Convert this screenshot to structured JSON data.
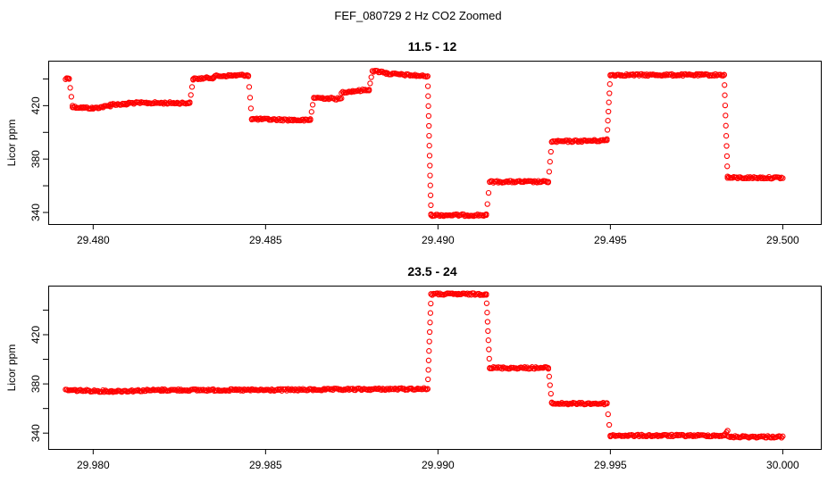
{
  "figure_title": "FEF_080729  2 Hz CO2 Zoomed",
  "colors": {
    "points": "#ff0000",
    "frame": "#000000"
  },
  "chart_data": [
    {
      "type": "scatter",
      "title": "11.5 - 12",
      "xlabel": "",
      "ylabel": "Licor ppm",
      "xlim": [
        29.4788,
        29.501
      ],
      "ylim": [
        334,
        451
      ],
      "xticks": [
        29.48,
        29.485,
        29.49,
        29.495,
        29.5
      ],
      "xtick_labels": [
        "29.480",
        "29.485",
        "29.490",
        "29.495",
        "29.500"
      ],
      "yticks": [
        340,
        360,
        380,
        400,
        420,
        440
      ],
      "ytick_labels": [
        "340",
        "",
        "380",
        "",
        "420",
        ""
      ],
      "grid": false,
      "marker": "open-circle",
      "segments": [
        {
          "x": [
            29.4792,
            29.4793
          ],
          "y": [
            440,
            441
          ],
          "kind": "level"
        },
        {
          "x": [
            29.4793,
            29.4794
          ],
          "y": [
            440,
            420
          ],
          "kind": "ramp"
        },
        {
          "x": [
            29.4794,
            29.48
          ],
          "y": [
            419,
            418
          ],
          "kind": "level"
        },
        {
          "x": [
            29.48,
            29.4805
          ],
          "y": [
            418,
            420
          ],
          "kind": "level"
        },
        {
          "x": [
            29.4805,
            29.481
          ],
          "y": [
            421,
            421
          ],
          "kind": "level"
        },
        {
          "x": [
            29.481,
            29.4828
          ],
          "y": [
            422,
            422
          ],
          "kind": "level"
        },
        {
          "x": [
            29.4828,
            29.4829
          ],
          "y": [
            422,
            440
          ],
          "kind": "ramp"
        },
        {
          "x": [
            29.4829,
            29.4835
          ],
          "y": [
            440,
            441
          ],
          "kind": "level"
        },
        {
          "x": [
            29.4835,
            29.4845
          ],
          "y": [
            442,
            443
          ],
          "kind": "level"
        },
        {
          "x": [
            29.4845,
            29.4846
          ],
          "y": [
            442,
            410
          ],
          "kind": "ramp"
        },
        {
          "x": [
            29.4846,
            29.4863
          ],
          "y": [
            410,
            409
          ],
          "kind": "level"
        },
        {
          "x": [
            29.4863,
            29.4864
          ],
          "y": [
            410,
            426
          ],
          "kind": "ramp"
        },
        {
          "x": [
            29.4864,
            29.4872
          ],
          "y": [
            426,
            425
          ],
          "kind": "level"
        },
        {
          "x": [
            29.4872,
            29.488
          ],
          "y": [
            430,
            432
          ],
          "kind": "level"
        },
        {
          "x": [
            29.488,
            29.4881
          ],
          "y": [
            432,
            446
          ],
          "kind": "ramp"
        },
        {
          "x": [
            29.4881,
            29.4885
          ],
          "y": [
            446,
            445
          ],
          "kind": "level"
        },
        {
          "x": [
            29.4885,
            29.4897
          ],
          "y": [
            444,
            442
          ],
          "kind": "level"
        },
        {
          "x": [
            29.4897,
            29.4898
          ],
          "y": [
            442,
            338
          ],
          "kind": "ramp"
        },
        {
          "x": [
            29.4898,
            29.4914
          ],
          "y": [
            338,
            338
          ],
          "kind": "level"
        },
        {
          "x": [
            29.4914,
            29.4915
          ],
          "y": [
            338,
            363
          ],
          "kind": "ramp"
        },
        {
          "x": [
            29.4915,
            29.4932
          ],
          "y": [
            363,
            363
          ],
          "kind": "level"
        },
        {
          "x": [
            29.4932,
            29.4933
          ],
          "y": [
            363,
            393
          ],
          "kind": "ramp"
        },
        {
          "x": [
            29.4933,
            29.4949
          ],
          "y": [
            393,
            394
          ],
          "kind": "level"
        },
        {
          "x": [
            29.4949,
            29.495
          ],
          "y": [
            395,
            443
          ],
          "kind": "ramp"
        },
        {
          "x": [
            29.495,
            29.4983
          ],
          "y": [
            443,
            443
          ],
          "kind": "level"
        },
        {
          "x": [
            29.4983,
            29.4984
          ],
          "y": [
            443,
            367
          ],
          "kind": "ramp"
        },
        {
          "x": [
            29.4984,
            29.5
          ],
          "y": [
            366,
            366
          ],
          "kind": "level"
        }
      ]
    },
    {
      "type": "scatter",
      "title": "23.5 - 24",
      "xlabel": "",
      "ylabel": "Licor ppm",
      "xlim": [
        29.9788,
        30.001
      ],
      "ylim": [
        330,
        457
      ],
      "xticks": [
        29.98,
        29.985,
        29.99,
        29.995,
        30.0
      ],
      "xtick_labels": [
        "29.980",
        "29.985",
        "29.990",
        "29.995",
        "30.000"
      ],
      "yticks": [
        340,
        360,
        380,
        400,
        420,
        440
      ],
      "ytick_labels": [
        "340",
        "",
        "380",
        "",
        "420",
        ""
      ],
      "grid": false,
      "marker": "open-circle",
      "segments": [
        {
          "x": [
            29.9792,
            29.9805
          ],
          "y": [
            375,
            374
          ],
          "kind": "level"
        },
        {
          "x": [
            29.9805,
            29.982
          ],
          "y": [
            374,
            375
          ],
          "kind": "level"
        },
        {
          "x": [
            29.982,
            29.985
          ],
          "y": [
            375,
            375
          ],
          "kind": "level"
        },
        {
          "x": [
            29.985,
            29.9897
          ],
          "y": [
            375,
            376
          ],
          "kind": "level"
        },
        {
          "x": [
            29.9897,
            29.9898
          ],
          "y": [
            376,
            453
          ],
          "kind": "ramp"
        },
        {
          "x": [
            29.9898,
            29.9914
          ],
          "y": [
            453,
            453
          ],
          "kind": "level"
        },
        {
          "x": [
            29.9914,
            29.9915
          ],
          "y": [
            453,
            393
          ],
          "kind": "ramp"
        },
        {
          "x": [
            29.9915,
            29.9932
          ],
          "y": [
            393,
            393
          ],
          "kind": "level"
        },
        {
          "x": [
            29.9932,
            29.9933
          ],
          "y": [
            393,
            365
          ],
          "kind": "ramp"
        },
        {
          "x": [
            29.9933,
            29.9949
          ],
          "y": [
            364,
            364
          ],
          "kind": "level"
        },
        {
          "x": [
            29.9949,
            29.995
          ],
          "y": [
            364,
            338
          ],
          "kind": "ramp"
        },
        {
          "x": [
            29.995,
            29.9983
          ],
          "y": [
            338,
            338
          ],
          "kind": "level"
        },
        {
          "x": [
            29.9983,
            29.9984
          ],
          "y": [
            338,
            342
          ],
          "kind": "ramp"
        },
        {
          "x": [
            29.9984,
            30.0
          ],
          "y": [
            337,
            337
          ],
          "kind": "level"
        }
      ]
    }
  ]
}
